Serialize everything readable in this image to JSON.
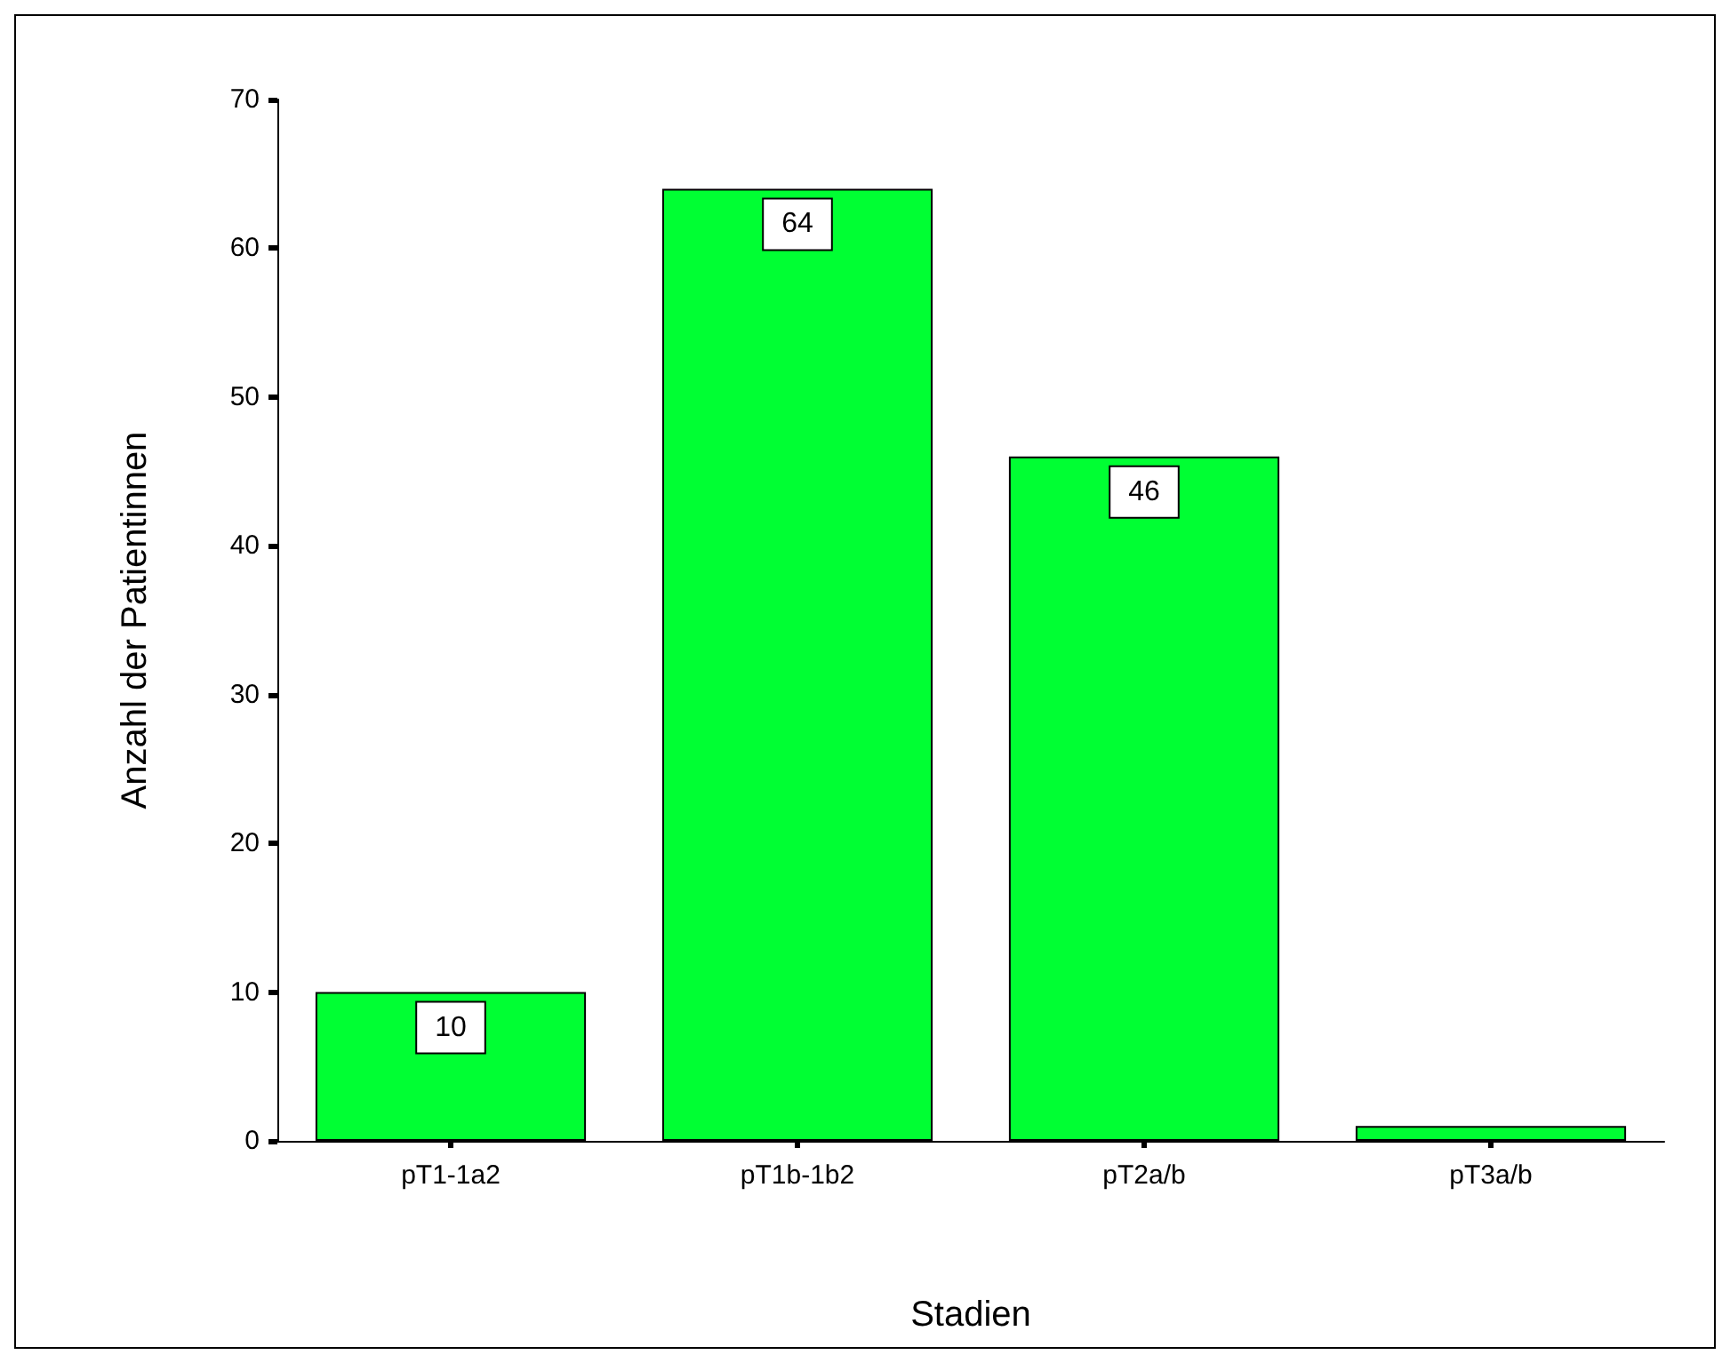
{
  "chart_data": {
    "type": "bar",
    "xlabel": "Stadien",
    "ylabel": "Anzahl der Patientinnen",
    "categories": [
      "pT1-1a2",
      "pT1b-1b2",
      "pT2a/b",
      "pT3a/b"
    ],
    "values": [
      10,
      64,
      46,
      1
    ],
    "value_labels": [
      "10",
      "64",
      "46",
      null
    ],
    "color": "#00ff33",
    "ylim": [
      0,
      70
    ],
    "yticks": [
      0,
      10,
      20,
      30,
      40,
      50,
      60,
      70
    ],
    "grid": false
  }
}
